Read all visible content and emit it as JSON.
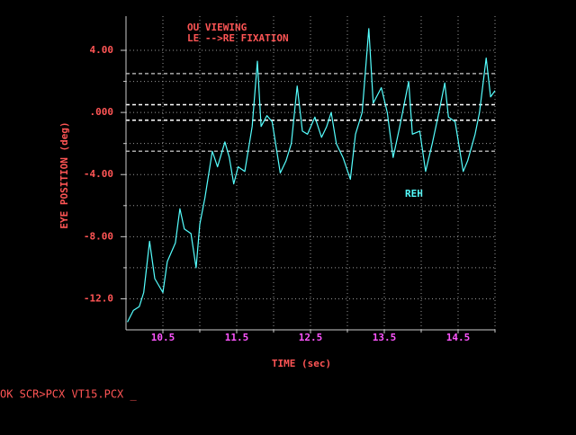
{
  "chart_data": {
    "type": "line",
    "annotations": [
      "OU VIEWING",
      "LE -->RE FIXATION"
    ],
    "series_label": "REH",
    "ylabel": "EYE POSITION (deg)",
    "xlabel": "TIME (sec)",
    "xlim": [
      10,
      15
    ],
    "ylim": [
      -14,
      6.2
    ],
    "xticks": [
      10.5,
      11.5,
      12.5,
      13.5,
      14.5
    ],
    "xminor_ticks": [
      11,
      12,
      13,
      14,
      15
    ],
    "yticks": [
      {
        "value": 4,
        "label": "4.00"
      },
      {
        "value": 0,
        "label": ".000"
      },
      {
        "value": -4,
        "label": "-4.00"
      },
      {
        "value": -8,
        "label": "-8.00"
      },
      {
        "value": -12,
        "label": "-12.0"
      }
    ],
    "yminor_ticks": [
      2,
      -2,
      -6,
      -10
    ],
    "grid": true,
    "reference_lines": [
      {
        "value": 2.5,
        "color": "#aaaaaa"
      },
      {
        "value": 0.5,
        "color": "#ffffff"
      },
      {
        "value": -0.5,
        "color": "#ffffff"
      },
      {
        "value": -2.5,
        "color": "#aaaaaa"
      }
    ],
    "series": [
      {
        "name": "REH",
        "color": "#55ffff",
        "x": [
          10.02,
          10.1,
          10.18,
          10.24,
          10.32,
          10.39,
          10.5,
          10.56,
          10.67,
          10.73,
          10.79,
          10.88,
          10.95,
          11.0,
          11.07,
          11.17,
          11.24,
          11.34,
          11.4,
          11.46,
          11.52,
          11.61,
          11.71,
          11.78,
          11.83,
          11.91,
          11.98,
          12.09,
          12.17,
          12.24,
          12.32,
          12.39,
          12.46,
          12.56,
          12.65,
          12.72,
          12.78,
          12.85,
          12.94,
          13.04,
          13.11,
          13.2,
          13.29,
          13.35,
          13.46,
          13.54,
          13.62,
          13.71,
          13.83,
          13.88,
          13.98,
          14.06,
          14.15,
          14.24,
          14.32,
          14.37,
          14.46,
          14.57,
          14.63,
          14.73,
          14.79,
          14.88,
          14.94,
          15.0
        ],
        "values": [
          -13.5,
          -12.75,
          -12.5,
          -11.6,
          -8.3,
          -10.7,
          -11.6,
          -9.6,
          -8.4,
          -6.2,
          -7.5,
          -7.8,
          -10.0,
          -7.2,
          -5.5,
          -2.5,
          -3.5,
          -1.9,
          -2.9,
          -4.6,
          -3.5,
          -3.8,
          -0.9,
          3.3,
          -0.9,
          -0.2,
          -0.6,
          -3.9,
          -3.1,
          -2.0,
          1.7,
          -1.2,
          -1.4,
          -0.3,
          -1.6,
          -0.9,
          0,
          -2.0,
          -2.9,
          -4.3,
          -1.4,
          0,
          5.4,
          0.6,
          1.6,
          0,
          -2.9,
          -0.9,
          2.0,
          -1.4,
          -1.2,
          -3.8,
          -2.0,
          0,
          1.9,
          -0.3,
          -0.6,
          -3.8,
          -3.1,
          -1.4,
          0,
          3.5,
          1.0,
          1.4
        ]
      }
    ]
  },
  "prompt": "OK SCR>PCX VT15.PCX _"
}
